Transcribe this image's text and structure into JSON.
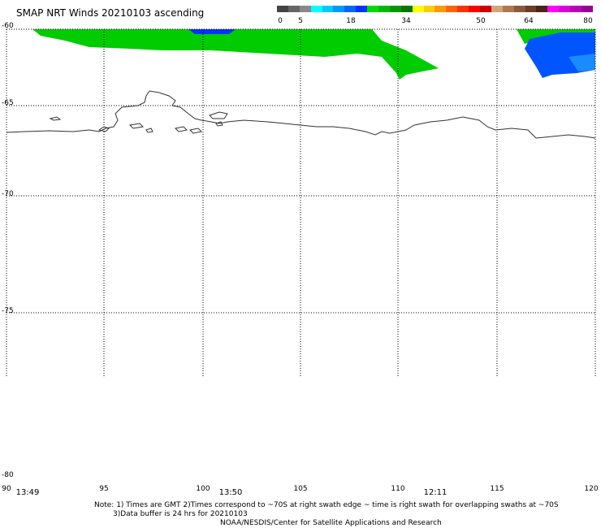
{
  "title": "SMAP NRT Winds 20210103 ascending",
  "colorbar": {
    "labels": [
      "0",
      "5",
      "18",
      "34",
      "50",
      "64",
      "80"
    ],
    "colors": [
      "#444444",
      "#666666",
      "#888888",
      "#00ffff",
      "#00ccff",
      "#0099ff",
      "#0066ff",
      "#0033ff",
      "#00dd00",
      "#00bb00",
      "#009900",
      "#007700",
      "#ffff00",
      "#ffcc00",
      "#ff9900",
      "#ff6600",
      "#ff3300",
      "#ff0000",
      "#cc0000",
      "#d2a679",
      "#b07850",
      "#8b5a3c",
      "#6b3e26",
      "#4a2414",
      "#ff00ff",
      "#dd00dd",
      "#bb00bb",
      "#990099"
    ]
  },
  "lat_labels": [
    "-60",
    "-65",
    "-70",
    "-75",
    "-80"
  ],
  "lon_labels": [
    "90",
    "95",
    "100",
    "105",
    "110",
    "115",
    "120"
  ],
  "times": [
    "13:49",
    "13:50",
    "12:11"
  ],
  "notes": {
    "line1": "Note: 1) Times are GMT 2)Times correspond to ~70S at right swath edge ~ time is right swath for overlapping swaths at ~70S",
    "line2": "3)Data buffer is 24 hrs for 20210103",
    "line3": "NOAA/NESDIS/Center for Satellite Applications and Research"
  }
}
